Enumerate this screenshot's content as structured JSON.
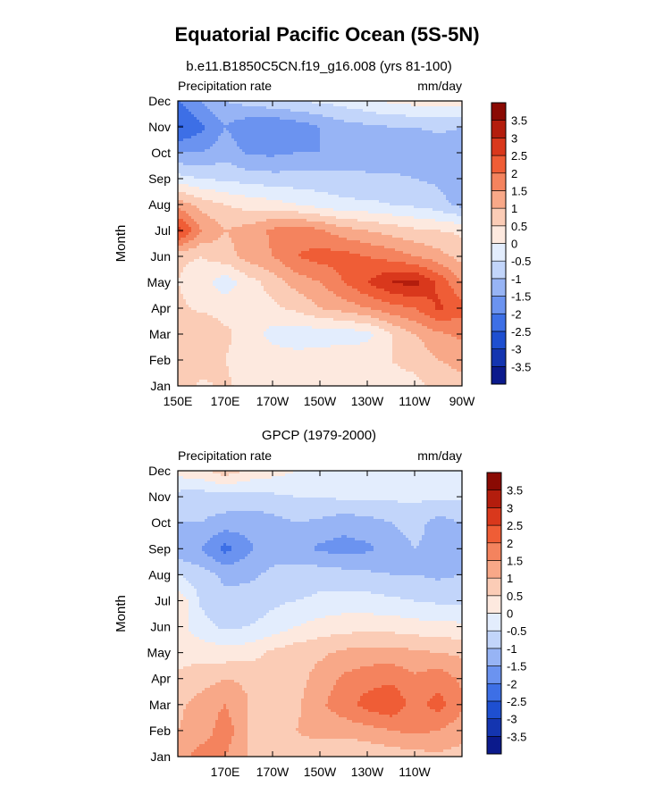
{
  "figure": {
    "title": "Equatorial Pacific Ocean (5S-5N)",
    "subtitle": "b.e11.B1850C5CN.f19_g16.008 (yrs 81-100)"
  },
  "palette": {
    "colors": [
      "#0b1a8c",
      "#1435b0",
      "#1e4fd0",
      "#3d6fe6",
      "#6b93f0",
      "#97b4f5",
      "#c2d5fa",
      "#e3edfd",
      "#fde9df",
      "#fbccb6",
      "#f8a888",
      "#f4835e",
      "#ef5d36",
      "#d9381c",
      "#b31d0d",
      "#8a0a03"
    ],
    "levels": [
      -3.5,
      -3,
      -2.5,
      -2,
      -1.5,
      -1,
      -0.5,
      0,
      0.5,
      1,
      1.5,
      2,
      2.5,
      3,
      3.5
    ],
    "level_labels": [
      "-3.5",
      "-3",
      "-2.5",
      "-2",
      "-1.5",
      "-1",
      "-0.5",
      "0",
      "0.5",
      "1",
      "1.5",
      "2",
      "2.5",
      "3",
      "3.5"
    ]
  },
  "chart_data": [
    {
      "type": "heatmap",
      "title": "b.e11.B1850C5CN.f19_g16.008 (yrs 81-100)",
      "left_string": "Precipitation rate",
      "right_string": "mm/day",
      "ylabel": "Month",
      "xlabel": "",
      "units": "mm/day",
      "x_lon_east": [
        150,
        160,
        170,
        180,
        190,
        200,
        210,
        220,
        230,
        240,
        250,
        260,
        270
      ],
      "y_months": [
        "Jan",
        "Feb",
        "Mar",
        "Apr",
        "May",
        "Jun",
        "Jul",
        "Aug",
        "Sep",
        "Oct",
        "Nov",
        "Dec"
      ],
      "x_tick_labels": [
        "150E",
        "170E",
        "170W",
        "150W",
        "130W",
        "110W",
        "90W"
      ],
      "x_tick_values": [
        150,
        170,
        190,
        210,
        230,
        250,
        270
      ],
      "xlim": [
        150,
        270
      ],
      "ylim": [
        "Jan",
        "Dec"
      ],
      "values": [
        [
          0.8,
          0.4,
          0.6,
          0.3,
          0.3,
          0.3,
          0.4,
          0.4,
          0.4,
          0.4,
          0.4,
          0.6,
          0.8
        ],
        [
          0.6,
          0.8,
          0.5,
          0.2,
          0.3,
          0.2,
          0.3,
          0.4,
          0.4,
          0.5,
          0.6,
          1.0,
          1.2
        ],
        [
          0.7,
          1.0,
          0.6,
          0.3,
          -0.2,
          -0.3,
          -0.3,
          -0.3,
          -0.2,
          0.5,
          1.0,
          1.4,
          1.6
        ],
        [
          0.6,
          0.4,
          0.3,
          0.3,
          0.4,
          0.6,
          1.0,
          1.2,
          1.5,
          1.8,
          2.0,
          2.6,
          2.2
        ],
        [
          0.5,
          0.2,
          -0.3,
          0.3,
          0.7,
          1.2,
          1.5,
          2.0,
          2.5,
          3.0,
          3.2,
          2.4,
          1.5
        ],
        [
          0.6,
          0.5,
          0.8,
          1.2,
          1.5,
          2.0,
          2.2,
          2.2,
          2.0,
          1.8,
          1.5,
          1.2,
          0.8
        ],
        [
          2.8,
          1.5,
          1.0,
          1.2,
          1.6,
          1.8,
          1.6,
          1.2,
          1.0,
          0.8,
          0.6,
          0.5,
          0.4
        ],
        [
          1.3,
          0.8,
          0.5,
          0.3,
          0.2,
          0.0,
          -0.2,
          -0.4,
          -0.4,
          -0.5,
          -0.6,
          -0.8,
          -1.2
        ],
        [
          -0.3,
          -0.5,
          -0.6,
          -0.7,
          -0.8,
          -0.8,
          -0.8,
          -0.8,
          -0.9,
          -0.9,
          -1.0,
          -1.1,
          -1.3
        ],
        [
          -1.5,
          -1.5,
          -1.2,
          -1.6,
          -1.6,
          -1.5,
          -1.5,
          -1.4,
          -1.3,
          -1.3,
          -1.3,
          -1.3,
          -1.3
        ],
        [
          -2.6,
          -2.1,
          -1.5,
          -1.9,
          -2.0,
          -1.8,
          -1.5,
          -1.2,
          -1.1,
          -1.0,
          -1.0,
          -0.9,
          -1.0
        ],
        [
          -2.0,
          -1.5,
          -1.0,
          -0.8,
          -0.6,
          -0.5,
          -0.4,
          -0.3,
          -0.1,
          0.1,
          0.2,
          0.3,
          0.3
        ]
      ]
    },
    {
      "type": "heatmap",
      "title": "GPCP (1979-2000)",
      "left_string": "Precipitation rate",
      "right_string": "mm/day",
      "ylabel": "Month",
      "xlabel": "",
      "units": "mm/day",
      "x_lon_east": [
        150,
        160,
        170,
        180,
        190,
        200,
        210,
        220,
        230,
        240,
        250,
        260,
        270
      ],
      "y_months": [
        "Jan",
        "Feb",
        "Mar",
        "Apr",
        "May",
        "Jun",
        "Jul",
        "Aug",
        "Sep",
        "Oct",
        "Nov",
        "Dec"
      ],
      "x_tick_labels": [
        "170E",
        "170W",
        "150W",
        "130W",
        "110W"
      ],
      "x_tick_values": [
        170,
        190,
        210,
        230,
        250
      ],
      "xlim": [
        150,
        270
      ],
      "ylim": [
        "Jan",
        "Dec"
      ],
      "values": [
        [
          1.2,
          1.8,
          1.5,
          1.0,
          0.9,
          0.8,
          0.6,
          0.5,
          0.6,
          0.7,
          0.8,
          0.9,
          0.8
        ],
        [
          1.0,
          1.2,
          1.8,
          1.0,
          0.9,
          1.0,
          1.2,
          1.2,
          1.3,
          1.5,
          1.6,
          1.5,
          1.2
        ],
        [
          0.9,
          1.2,
          1.5,
          1.0,
          0.7,
          0.9,
          1.4,
          1.8,
          2.2,
          2.4,
          1.8,
          2.2,
          1.6
        ],
        [
          0.6,
          0.8,
          1.0,
          0.9,
          0.6,
          0.8,
          1.2,
          1.6,
          1.8,
          1.9,
          1.6,
          1.8,
          1.4
        ],
        [
          0.3,
          0.3,
          0.2,
          0.3,
          0.6,
          0.8,
          0.9,
          1.1,
          1.2,
          1.2,
          1.1,
          1.0,
          0.9
        ],
        [
          0.2,
          -0.3,
          -0.6,
          -0.5,
          -0.3,
          0.0,
          0.2,
          0.3,
          0.3,
          0.3,
          0.2,
          0.2,
          0.1
        ],
        [
          0.4,
          -0.6,
          -0.9,
          -0.8,
          -0.6,
          -0.5,
          -0.4,
          -0.3,
          -0.3,
          -0.4,
          -0.5,
          -0.6,
          -0.6
        ],
        [
          -0.5,
          -0.8,
          -1.1,
          -1.1,
          -0.9,
          -0.8,
          -0.7,
          -0.8,
          -0.9,
          -1.0,
          -1.0,
          -1.1,
          -1.0
        ],
        [
          -1.3,
          -1.5,
          -2.2,
          -1.6,
          -1.2,
          -1.3,
          -1.6,
          -1.7,
          -1.6,
          -1.3,
          -1.0,
          -1.2,
          -1.1
        ],
        [
          -1.0,
          -1.0,
          -1.2,
          -1.3,
          -1.2,
          -1.0,
          -1.1,
          -1.3,
          -1.2,
          -1.0,
          -0.8,
          -1.2,
          -1.0
        ],
        [
          -0.7,
          -0.8,
          -0.7,
          -0.7,
          -0.6,
          -0.5,
          -0.5,
          -0.4,
          -0.4,
          -0.4,
          -0.4,
          -0.4,
          -0.4
        ],
        [
          0.2,
          0.4,
          0.8,
          0.4,
          0.2,
          0.0,
          -0.1,
          -0.1,
          -0.1,
          -0.2,
          -0.2,
          -0.2,
          -0.2
        ]
      ]
    }
  ]
}
